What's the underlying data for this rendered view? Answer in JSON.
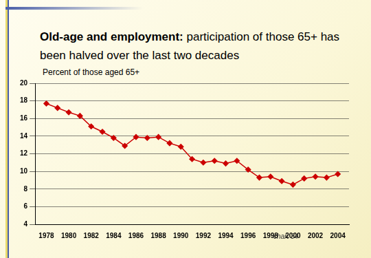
{
  "chart_data": {
    "type": "line",
    "title": "Old-age and employment: participation of those 65+ has been halved over the last two decades",
    "subtitle": "Percent of those aged 65+",
    "annotation": "chart 34",
    "x": [
      1978,
      1979,
      1980,
      1981,
      1982,
      1983,
      1984,
      1985,
      1986,
      1987,
      1988,
      1989,
      1990,
      1991,
      1992,
      1993,
      1994,
      1995,
      1996,
      1997,
      1998,
      1999,
      2000,
      2001,
      2002,
      2003,
      2004
    ],
    "values": [
      17.7,
      17.2,
      16.7,
      16.3,
      15.1,
      14.5,
      13.8,
      12.9,
      13.9,
      13.8,
      13.9,
      13.2,
      12.8,
      11.4,
      11.0,
      11.2,
      10.9,
      11.2,
      10.2,
      9.3,
      9.4,
      8.9,
      8.5,
      9.2,
      9.4,
      9.3,
      9.7
    ],
    "color": "#cc0000",
    "marker": "diamond",
    "line_style": "solid",
    "xlim": [
      1977,
      2005
    ],
    "xticks": [
      1978,
      1980,
      1982,
      1984,
      1986,
      1988,
      1990,
      1992,
      1994,
      1996,
      1998,
      2000,
      2002,
      2004
    ],
    "ylim": [
      4,
      20
    ],
    "yticks": [
      4,
      6,
      8,
      10,
      12,
      14,
      16,
      18,
      20
    ],
    "grid": true
  }
}
